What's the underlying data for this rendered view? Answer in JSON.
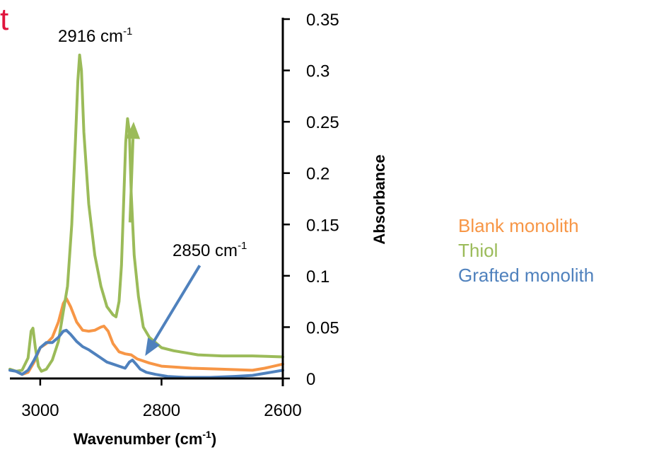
{
  "corner_text": "t",
  "corner_color": "#E0143C",
  "chart_data": {
    "type": "line",
    "xlabel": "Wavenumber (cm",
    "xlabel_sup": "-1",
    "xlabel_tail": ")",
    "ylabel": "Absorbance",
    "xlim": [
      3050,
      2600
    ],
    "ylim": [
      0,
      0.35
    ],
    "x_reversed": true,
    "x_ticks": [
      3000,
      2800,
      2600
    ],
    "x_tick_labels": [
      "3000",
      "2800",
      "2600"
    ],
    "y_ticks": [
      0,
      0.05,
      0.1,
      0.15,
      0.2,
      0.25,
      0.3,
      0.35
    ],
    "y_tick_labels": [
      "0",
      "0.05",
      "0.1",
      "0.15",
      "0.2",
      "0.25",
      "0.3",
      "0.35"
    ],
    "y_axis_position": "right",
    "series": [
      {
        "name": "Blank monolith",
        "color": "#F79646",
        "points": [
          [
            3050,
            0.009
          ],
          [
            3040,
            0.007
          ],
          [
            3030,
            0.004
          ],
          [
            3020,
            0.006
          ],
          [
            3010,
            0.016
          ],
          [
            3000,
            0.03
          ],
          [
            2990,
            0.034
          ],
          [
            2980,
            0.04
          ],
          [
            2970,
            0.055
          ],
          [
            2962,
            0.073
          ],
          [
            2957,
            0.078
          ],
          [
            2950,
            0.07
          ],
          [
            2940,
            0.055
          ],
          [
            2930,
            0.047
          ],
          [
            2920,
            0.046
          ],
          [
            2910,
            0.047
          ],
          [
            2900,
            0.05
          ],
          [
            2895,
            0.051
          ],
          [
            2888,
            0.046
          ],
          [
            2880,
            0.034
          ],
          [
            2870,
            0.026
          ],
          [
            2860,
            0.024
          ],
          [
            2850,
            0.023
          ],
          [
            2840,
            0.019
          ],
          [
            2820,
            0.015
          ],
          [
            2800,
            0.012
          ],
          [
            2750,
            0.01
          ],
          [
            2700,
            0.009
          ],
          [
            2650,
            0.008
          ],
          [
            2630,
            0.01
          ],
          [
            2600,
            0.014
          ]
        ]
      },
      {
        "name": "Thiol",
        "color": "#9BBB59",
        "points": [
          [
            3050,
            0.009
          ],
          [
            3040,
            0.007
          ],
          [
            3030,
            0.008
          ],
          [
            3020,
            0.02
          ],
          [
            3015,
            0.046
          ],
          [
            3012,
            0.049
          ],
          [
            3008,
            0.03
          ],
          [
            3003,
            0.012
          ],
          [
            2998,
            0.007
          ],
          [
            2990,
            0.009
          ],
          [
            2980,
            0.018
          ],
          [
            2970,
            0.036
          ],
          [
            2962,
            0.065
          ],
          [
            2955,
            0.09
          ],
          [
            2948,
            0.15
          ],
          [
            2942,
            0.23
          ],
          [
            2938,
            0.29
          ],
          [
            2935,
            0.315
          ],
          [
            2932,
            0.3
          ],
          [
            2928,
            0.24
          ],
          [
            2920,
            0.17
          ],
          [
            2910,
            0.12
          ],
          [
            2900,
            0.09
          ],
          [
            2890,
            0.07
          ],
          [
            2880,
            0.062
          ],
          [
            2875,
            0.06
          ],
          [
            2870,
            0.075
          ],
          [
            2866,
            0.11
          ],
          [
            2862,
            0.18
          ],
          [
            2859,
            0.23
          ],
          [
            2856,
            0.253
          ],
          [
            2853,
            0.24
          ],
          [
            2850,
            0.18
          ],
          [
            2845,
            0.12
          ],
          [
            2838,
            0.08
          ],
          [
            2830,
            0.05
          ],
          [
            2820,
            0.04
          ],
          [
            2810,
            0.035
          ],
          [
            2800,
            0.03
          ],
          [
            2780,
            0.027
          ],
          [
            2760,
            0.025
          ],
          [
            2740,
            0.023
          ],
          [
            2700,
            0.022
          ],
          [
            2650,
            0.022
          ],
          [
            2600,
            0.021
          ]
        ]
      },
      {
        "name": "Grafted monolith",
        "color": "#4F81BD",
        "points": [
          [
            3050,
            0.008
          ],
          [
            3040,
            0.007
          ],
          [
            3030,
            0.004
          ],
          [
            3020,
            0.008
          ],
          [
            3010,
            0.018
          ],
          [
            3000,
            0.03
          ],
          [
            2990,
            0.035
          ],
          [
            2980,
            0.035
          ],
          [
            2970,
            0.04
          ],
          [
            2962,
            0.046
          ],
          [
            2957,
            0.047
          ],
          [
            2950,
            0.043
          ],
          [
            2940,
            0.036
          ],
          [
            2930,
            0.031
          ],
          [
            2920,
            0.028
          ],
          [
            2910,
            0.024
          ],
          [
            2900,
            0.02
          ],
          [
            2890,
            0.016
          ],
          [
            2880,
            0.014
          ],
          [
            2870,
            0.012
          ],
          [
            2860,
            0.01
          ],
          [
            2853,
            0.016
          ],
          [
            2848,
            0.018
          ],
          [
            2842,
            0.014
          ],
          [
            2835,
            0.009
          ],
          [
            2825,
            0.006
          ],
          [
            2810,
            0.004
          ],
          [
            2790,
            0.002
          ],
          [
            2760,
            0.001
          ],
          [
            2720,
            0.001
          ],
          [
            2680,
            0.002
          ],
          [
            2650,
            0.003
          ],
          [
            2620,
            0.006
          ],
          [
            2600,
            0.008
          ]
        ]
      }
    ],
    "annotations": [
      {
        "text": "2916 cm",
        "sup": "-1",
        "color": "#9BBB59",
        "arrow_from": [
          2852,
          0.152
        ],
        "arrow_to": [
          2846,
          0.25
        ]
      },
      {
        "text": "2850 cm",
        "sup": "-1",
        "color": "#4F81BD",
        "arrow_from": [
          2737,
          0.11
        ],
        "arrow_to": [
          2827,
          0.022
        ]
      }
    ],
    "legend_position": "right"
  }
}
